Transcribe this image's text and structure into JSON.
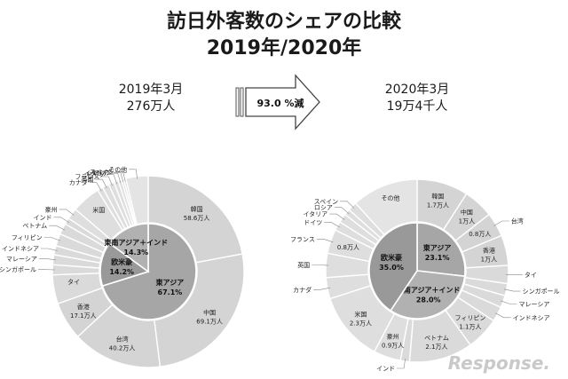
{
  "header": {
    "title": "訪日外客数のシェアの比較",
    "subtitle": "2019年/2020年"
  },
  "arrow": {
    "label": "93.0 %減"
  },
  "watermark": "Response.",
  "chart_data": [
    {
      "type": "pie",
      "title": "2019年3月",
      "subtitle": "276万人",
      "inner": [
        {
          "name": "東アジア",
          "value": 67.1,
          "label": "67.1%"
        },
        {
          "name": "欧米豪",
          "value": 14.2,
          "label": "14.2%"
        },
        {
          "name": "東南アジア＋インド",
          "value": 14.3,
          "label": "14.3%"
        }
      ],
      "outer": [
        {
          "name": "韓国",
          "value": 58.6,
          "label": "58.6万人",
          "group": "東アジア"
        },
        {
          "name": "中国",
          "value": 69.1,
          "label": "69.1万人",
          "group": "東アジア"
        },
        {
          "name": "台湾",
          "value": 40.2,
          "label": "40.2万人",
          "group": "東アジア"
        },
        {
          "name": "香港",
          "value": 17.1,
          "label": "17.1万人",
          "group": "東アジア"
        },
        {
          "name": "タイ",
          "value": 13.0,
          "label": "",
          "group": "東南アジア＋インド"
        },
        {
          "name": "シンガポール",
          "value": 4.5,
          "label": "",
          "group": "東南アジア＋インド"
        },
        {
          "name": "マレーシア",
          "value": 4.5,
          "label": "",
          "group": "東南アジア＋インド"
        },
        {
          "name": "インドネシア",
          "value": 4.0,
          "label": "",
          "group": "東南アジア＋インド"
        },
        {
          "name": "フィリピン",
          "value": 5.5,
          "label": "",
          "group": "東南アジア＋インド"
        },
        {
          "name": "ベトナム",
          "value": 5.0,
          "label": "",
          "group": "東南アジア＋インド"
        },
        {
          "name": "インド",
          "value": 2.9,
          "label": "",
          "group": "東南アジア＋インド"
        },
        {
          "name": "豪州",
          "value": 5.0,
          "label": "",
          "group": "欧米豪"
        },
        {
          "name": "米国",
          "value": 13.0,
          "label": "",
          "group": "欧米豪"
        },
        {
          "name": "カナダ",
          "value": 2.5,
          "label": "",
          "group": "欧米豪"
        },
        {
          "name": "英国",
          "value": 3.0,
          "label": "",
          "group": "欧米豪"
        },
        {
          "name": "フランス",
          "value": 2.5,
          "label": "",
          "group": "欧米豪"
        },
        {
          "name": "ドイツ",
          "value": 2.0,
          "label": "",
          "group": "欧米豪"
        },
        {
          "name": "イタリア",
          "value": 1.5,
          "label": "",
          "group": "欧米豪"
        },
        {
          "name": "ロシア",
          "value": 1.0,
          "label": "",
          "group": "欧米豪"
        },
        {
          "name": "スペイン",
          "value": 1.0,
          "label": "",
          "group": "欧米豪"
        },
        {
          "name": "その他",
          "value": 10.0,
          "label": "",
          "group": "その他"
        }
      ]
    },
    {
      "type": "pie",
      "title": "2020年3月",
      "subtitle": "19万4千人",
      "inner": [
        {
          "name": "東アジア",
          "value": 23.1,
          "label": "23.1%"
        },
        {
          "name": "東南アジア＋インド",
          "value": 28.0,
          "label": "28.0%"
        },
        {
          "name": "欧米豪",
          "value": 35.0,
          "label": "35.0%"
        }
      ],
      "outer": [
        {
          "name": "韓国",
          "value": 1.7,
          "label": "1.7万人",
          "group": "東アジア"
        },
        {
          "name": "中国",
          "value": 1.0,
          "label": "1万人",
          "group": "東アジア"
        },
        {
          "name": "台湾",
          "value": 0.8,
          "label": "0.8万人",
          "group": "東アジア"
        },
        {
          "name": "香港",
          "value": 1.0,
          "label": "1万人",
          "group": "東アジア"
        },
        {
          "name": "タイ",
          "value": 0.6,
          "label": "",
          "group": "東南アジア＋インド"
        },
        {
          "name": "シンガポール",
          "value": 0.4,
          "label": "",
          "group": "東南アジア＋インド"
        },
        {
          "name": "マレーシア",
          "value": 0.4,
          "label": "",
          "group": "東南アジア＋インド"
        },
        {
          "name": "インドネシア",
          "value": 0.5,
          "label": "",
          "group": "東南アジア＋インド"
        },
        {
          "name": "フィリピン",
          "value": 1.1,
          "label": "1.1万人",
          "group": "東南アジア＋インド"
        },
        {
          "name": "ベトナム",
          "value": 2.1,
          "label": "2.1万人",
          "group": "東南アジア＋インド"
        },
        {
          "name": "インド",
          "value": 0.3,
          "label": "",
          "group": "東南アジア＋インド"
        },
        {
          "name": "豪州",
          "value": 0.9,
          "label": "0.9万人",
          "group": "欧米豪"
        },
        {
          "name": "米国",
          "value": 2.3,
          "label": "2.3万人",
          "group": "欧米豪"
        },
        {
          "name": "カナダ",
          "value": 0.7,
          "label": "",
          "group": "欧米豪"
        },
        {
          "name": "英国",
          "value": 0.8,
          "label": "",
          "group": "欧米豪"
        },
        {
          "name": "フランス",
          "value": 0.8,
          "label": "0.8万人",
          "group": "欧米豪"
        },
        {
          "name": "ドイツ",
          "value": 0.3,
          "label": "",
          "group": "欧米豪"
        },
        {
          "name": "イタリア",
          "value": 0.3,
          "label": "",
          "group": "欧米豪"
        },
        {
          "name": "ロシア",
          "value": 0.2,
          "label": "",
          "group": "欧米豪"
        },
        {
          "name": "スペイン",
          "value": 0.3,
          "label": "",
          "group": "欧米豪"
        },
        {
          "name": "その他",
          "value": 2.2,
          "label": "",
          "group": "その他"
        }
      ]
    }
  ]
}
